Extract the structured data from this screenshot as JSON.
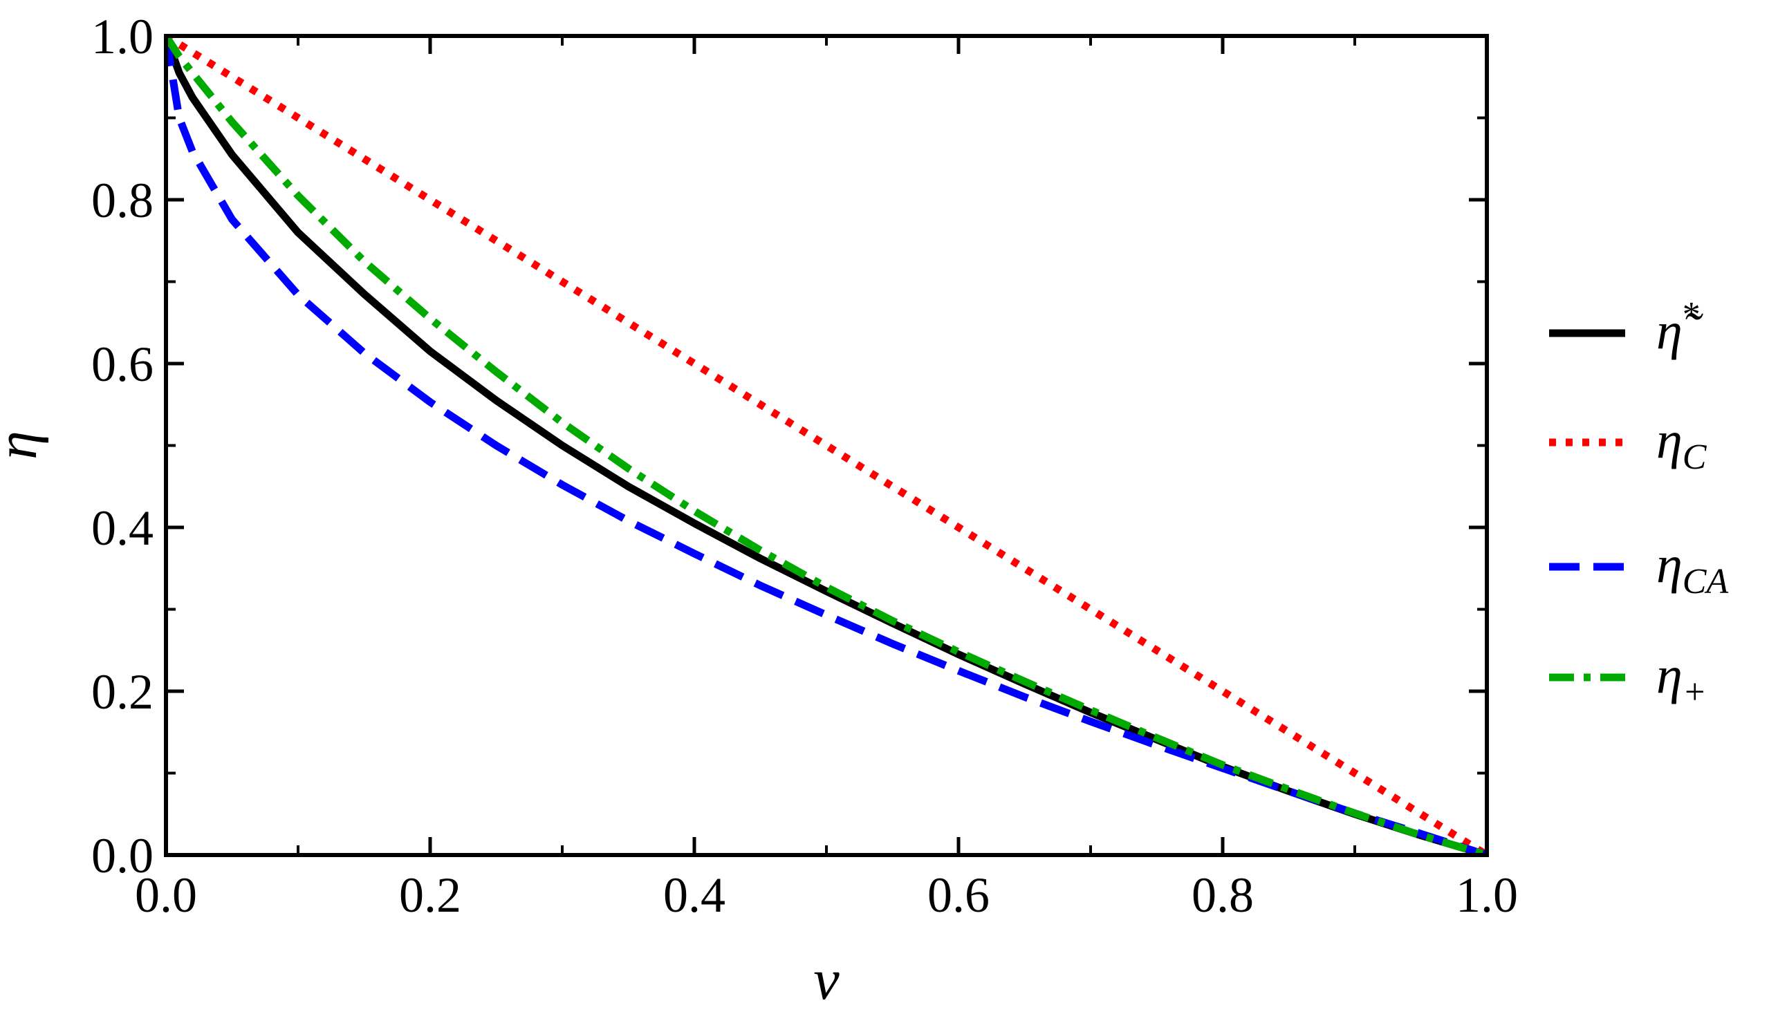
{
  "chart_data": {
    "type": "line",
    "title": "",
    "xlabel": "ν",
    "ylabel": "η",
    "xlim": [
      0,
      1
    ],
    "ylim": [
      0,
      1
    ],
    "xticks": [
      "0.0",
      "0.2",
      "0.4",
      "0.6",
      "0.8",
      "1.0"
    ],
    "yticks": [
      "0.0",
      "0.2",
      "0.4",
      "0.6",
      "0.8",
      "1.0"
    ],
    "grid": false,
    "legend_position": "right",
    "series": [
      {
        "name": "η̃*",
        "style": "solid",
        "color": "#000000",
        "x": [
          0.0,
          0.01,
          0.02,
          0.05,
          0.1,
          0.15,
          0.2,
          0.25,
          0.3,
          0.35,
          0.4,
          0.45,
          0.5,
          0.55,
          0.6,
          0.65,
          0.7,
          0.75,
          0.8,
          0.85,
          0.9,
          0.95,
          1.0
        ],
        "y": [
          1.0,
          0.955,
          0.925,
          0.855,
          0.76,
          0.685,
          0.615,
          0.555,
          0.5,
          0.45,
          0.405,
          0.362,
          0.322,
          0.283,
          0.245,
          0.209,
          0.174,
          0.141,
          0.108,
          0.078,
          0.05,
          0.024,
          0.0
        ]
      },
      {
        "name": "ηC",
        "style": "dotted",
        "color": "#ff0000",
        "x": [
          0.0,
          1.0
        ],
        "y": [
          1.0,
          0.0
        ]
      },
      {
        "name": "ηCA",
        "style": "dashed",
        "color": "#0000ff",
        "x": [
          0.0,
          0.01,
          0.02,
          0.05,
          0.1,
          0.15,
          0.2,
          0.25,
          0.3,
          0.35,
          0.4,
          0.45,
          0.5,
          0.55,
          0.6,
          0.65,
          0.7,
          0.75,
          0.8,
          0.85,
          0.9,
          0.95,
          1.0
        ],
        "y": [
          1.0,
          0.9,
          0.859,
          0.776,
          0.684,
          0.613,
          0.553,
          0.5,
          0.452,
          0.408,
          0.368,
          0.329,
          0.293,
          0.258,
          0.225,
          0.193,
          0.163,
          0.134,
          0.106,
          0.078,
          0.051,
          0.026,
          0.0
        ]
      },
      {
        "name": "η+",
        "style": "dash-dot",
        "color": "#00aa00",
        "x": [
          0.0,
          0.01,
          0.02,
          0.05,
          0.1,
          0.15,
          0.2,
          0.25,
          0.3,
          0.35,
          0.4,
          0.45,
          0.5,
          0.55,
          0.6,
          0.65,
          0.7,
          0.75,
          0.8,
          0.85,
          0.9,
          0.95,
          1.0
        ],
        "y": [
          1.0,
          0.975,
          0.955,
          0.895,
          0.805,
          0.725,
          0.655,
          0.59,
          0.528,
          0.472,
          0.42,
          0.372,
          0.327,
          0.286,
          0.248,
          0.212,
          0.177,
          0.143,
          0.11,
          0.08,
          0.051,
          0.024,
          0.0
        ]
      }
    ]
  }
}
